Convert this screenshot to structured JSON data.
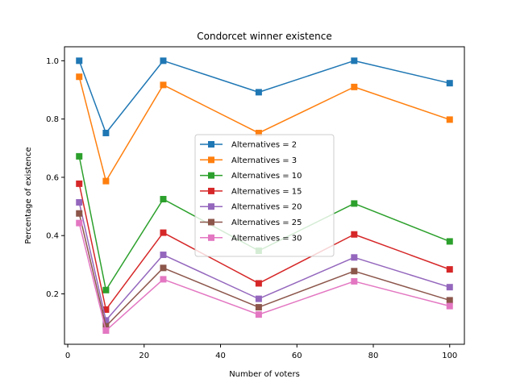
{
  "chart_data": {
    "type": "line",
    "title": "Condorcet winner existence",
    "xlabel": "Number of voters",
    "ylabel": "Percentage of existence",
    "x": [
      3,
      10,
      25,
      50,
      75,
      100
    ],
    "xlim": [
      -0.85,
      103.85
    ],
    "ylim": [
      0.027,
      1.048
    ],
    "xticks": [
      0,
      20,
      40,
      60,
      80,
      100
    ],
    "yticks": [
      0.2,
      0.4,
      0.6,
      0.8,
      1.0
    ],
    "xtick_labels": [
      "0",
      "20",
      "40",
      "60",
      "80",
      "100"
    ],
    "ytick_labels": [
      "0.2",
      "0.4",
      "0.6",
      "0.8",
      "1.0"
    ],
    "grid": false,
    "legend_position": "center",
    "marker": "square",
    "series": [
      {
        "name": "Alternatives = 2",
        "color": "#1f77b4",
        "values": [
          1.0,
          0.752,
          1.0,
          0.892,
          1.0,
          0.923
        ]
      },
      {
        "name": "Alternatives = 3",
        "color": "#ff7f0e",
        "values": [
          0.945,
          0.587,
          0.917,
          0.752,
          0.91,
          0.798
        ]
      },
      {
        "name": "Alternatives = 10",
        "color": "#2ca02c",
        "values": [
          0.672,
          0.213,
          0.525,
          0.348,
          0.51,
          0.38
        ]
      },
      {
        "name": "Alternatives = 15",
        "color": "#d62728",
        "values": [
          0.578,
          0.146,
          0.41,
          0.236,
          0.404,
          0.284
        ]
      },
      {
        "name": "Alternatives = 20",
        "color": "#9467bd",
        "values": [
          0.514,
          0.109,
          0.334,
          0.183,
          0.325,
          0.223
        ]
      },
      {
        "name": "Alternatives = 25",
        "color": "#8c564b",
        "values": [
          0.476,
          0.089,
          0.289,
          0.154,
          0.278,
          0.178
        ]
      },
      {
        "name": "Alternatives = 30",
        "color": "#e377c2",
        "values": [
          0.443,
          0.074,
          0.25,
          0.129,
          0.243,
          0.158
        ]
      }
    ]
  }
}
